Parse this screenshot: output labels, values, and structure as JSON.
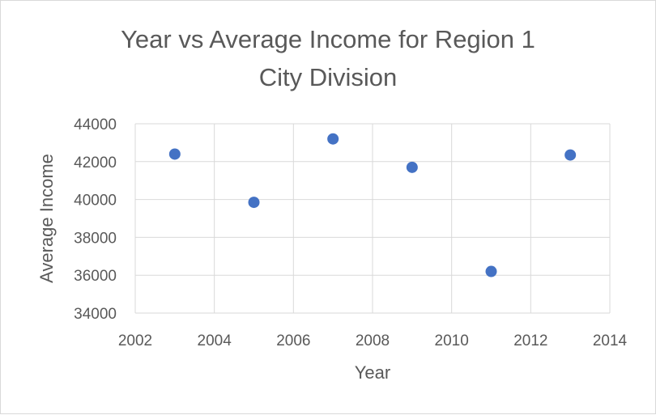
{
  "chart_data": {
    "type": "scatter",
    "title": "Year vs Average Income for Region 1 City Division",
    "title_lines": [
      "Year vs Average Income for Region 1",
      "City Division"
    ],
    "xlabel": "Year",
    "ylabel": "Average Income",
    "xlim": [
      2002,
      2014
    ],
    "ylim": [
      34000,
      44000
    ],
    "x_ticks": [
      2002,
      2004,
      2006,
      2008,
      2010,
      2012,
      2014
    ],
    "y_ticks": [
      34000,
      36000,
      38000,
      40000,
      42000,
      44000
    ],
    "grid": true,
    "legend": "none",
    "marker_color": "#4472c4",
    "series": [
      {
        "x": [
          2003,
          2005,
          2007,
          2009,
          2011,
          2013
        ],
        "y": [
          42400,
          39850,
          43200,
          41700,
          36200,
          42350
        ]
      }
    ]
  }
}
